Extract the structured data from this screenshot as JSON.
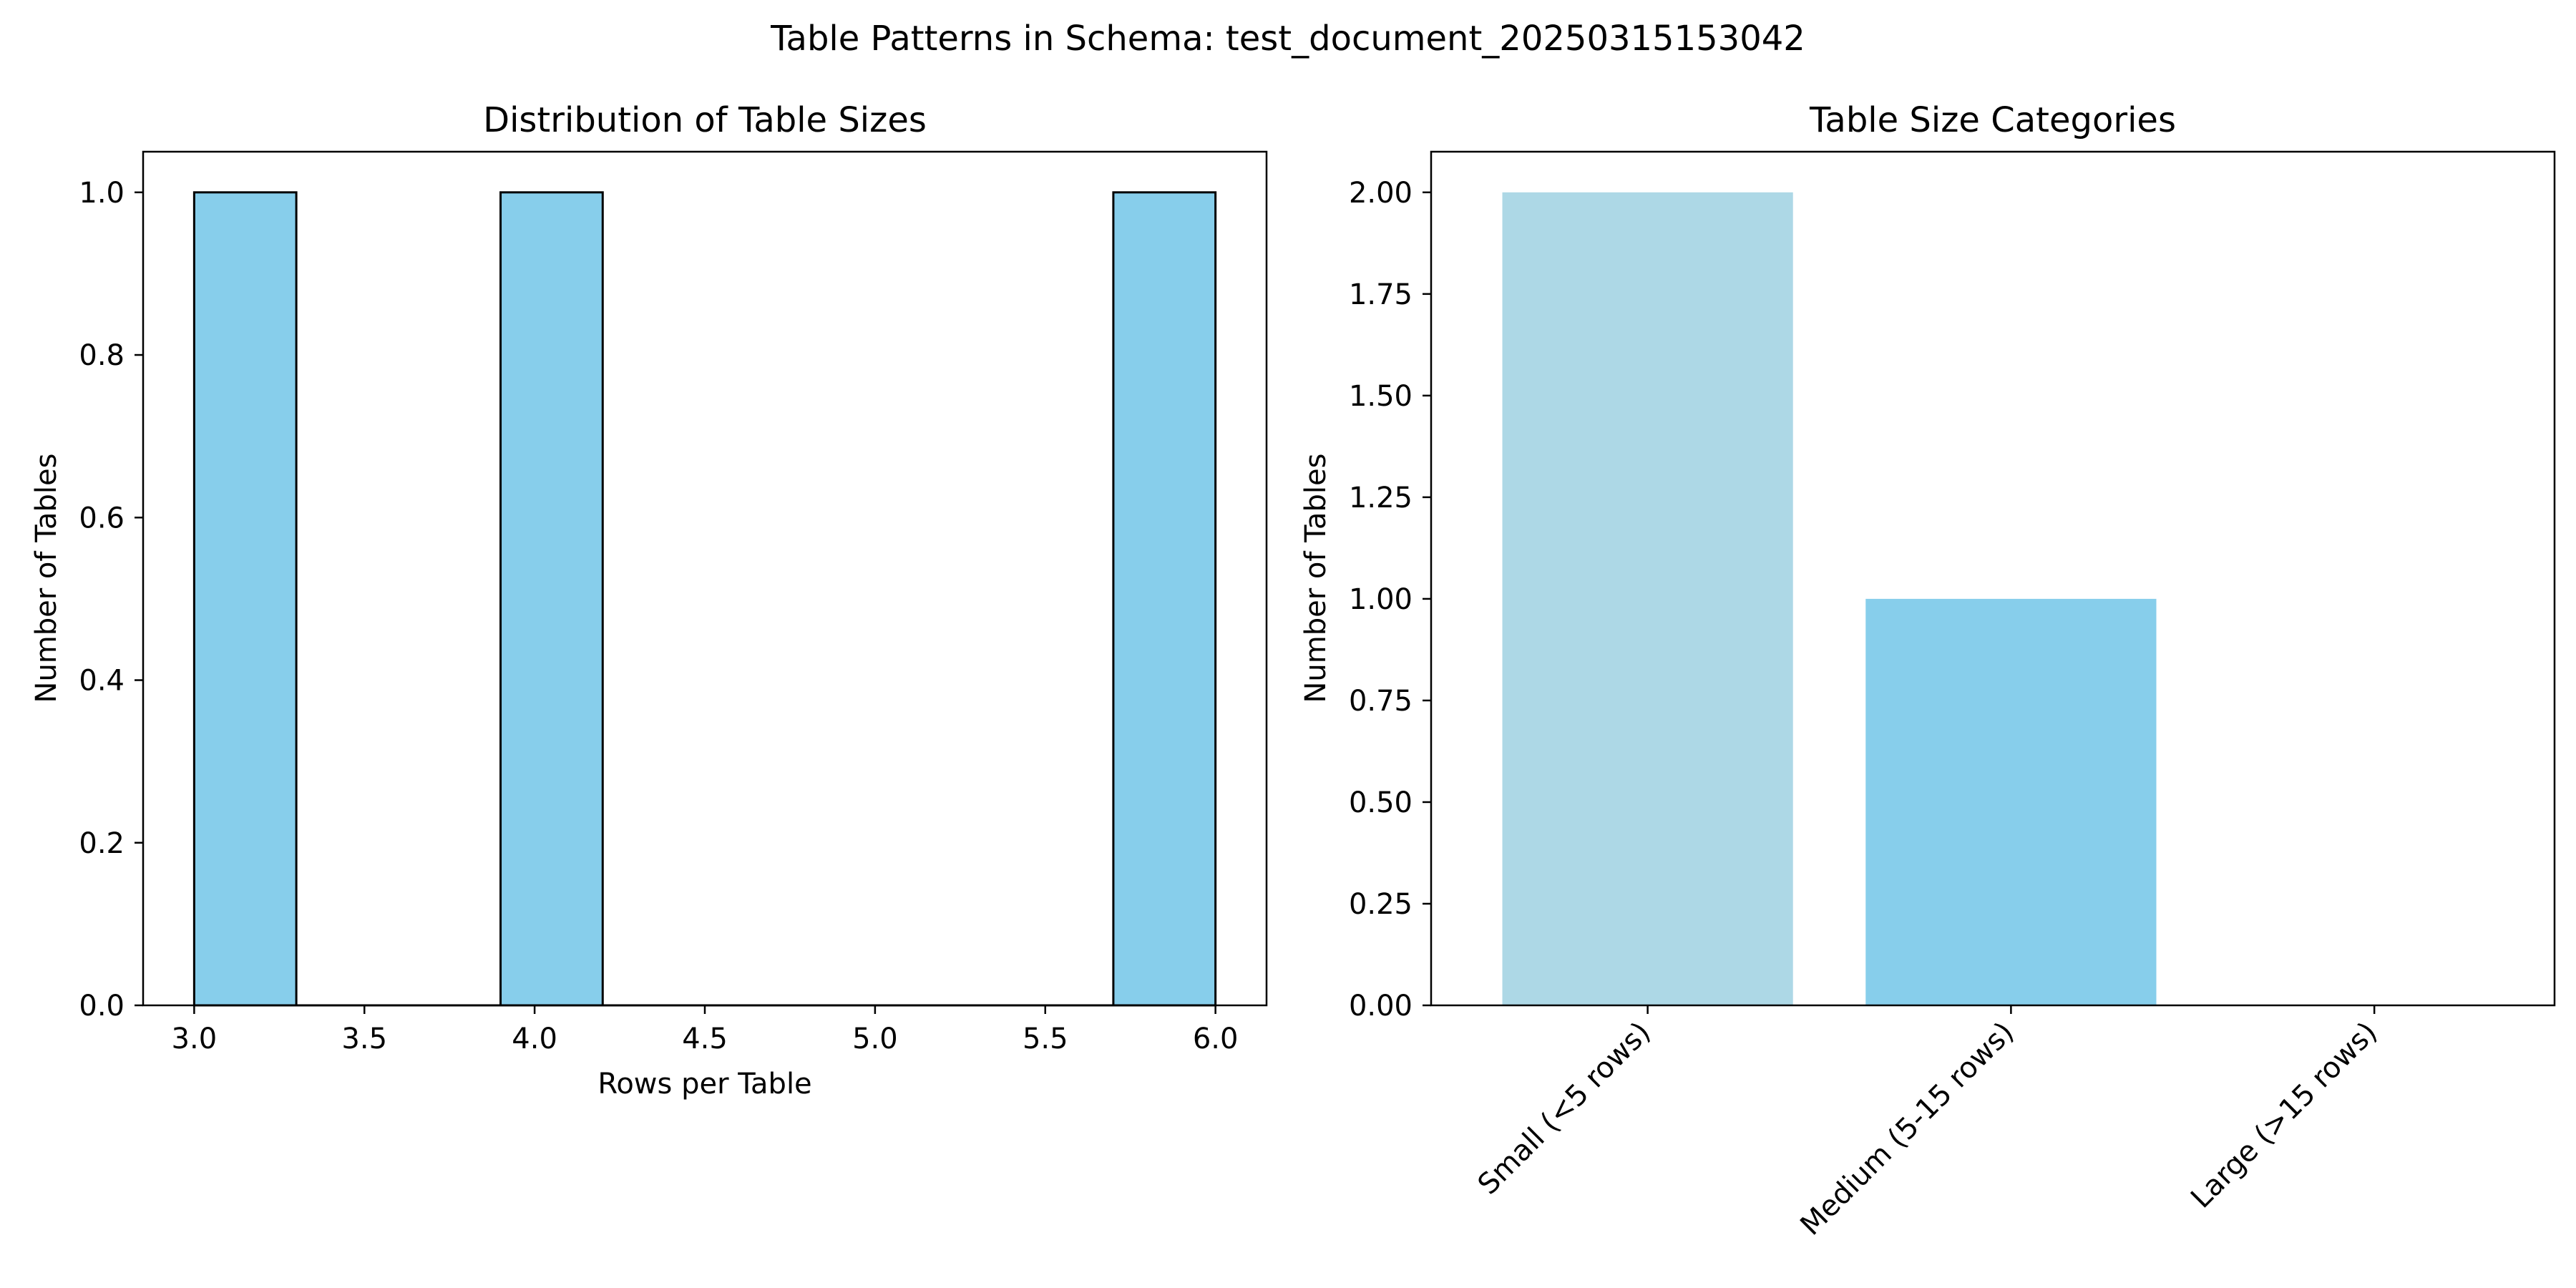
{
  "figure": {
    "suptitle": "Table Patterns in Schema: test_document_20250315153042"
  },
  "chart_data": [
    {
      "type": "bar",
      "subtype": "histogram",
      "title": "Distribution of Table Sizes",
      "xlabel": "Rows per Table",
      "ylabel": "Number of Tables",
      "xlim": [
        2.85,
        6.15
      ],
      "ylim": [
        0,
        1.05
      ],
      "xticks": [
        3.0,
        3.5,
        4.0,
        4.5,
        5.0,
        5.5,
        6.0
      ],
      "xtick_labels": [
        "3.0",
        "3.5",
        "4.0",
        "4.5",
        "5.0",
        "5.5",
        "6.0"
      ],
      "yticks": [
        0.0,
        0.2,
        0.4,
        0.6,
        0.8,
        1.0
      ],
      "ytick_labels": [
        "0.0",
        "0.2",
        "0.4",
        "0.6",
        "0.8",
        "1.0"
      ],
      "bins": [
        {
          "x0": 3.0,
          "x1": 3.3,
          "count": 1
        },
        {
          "x0": 3.3,
          "x1": 3.6,
          "count": 0
        },
        {
          "x0": 3.6,
          "x1": 3.9,
          "count": 0
        },
        {
          "x0": 3.9,
          "x1": 4.2,
          "count": 1
        },
        {
          "x0": 4.2,
          "x1": 4.5,
          "count": 0
        },
        {
          "x0": 4.5,
          "x1": 4.8,
          "count": 0
        },
        {
          "x0": 4.8,
          "x1": 5.1,
          "count": 0
        },
        {
          "x0": 5.1,
          "x1": 5.4,
          "count": 0
        },
        {
          "x0": 5.4,
          "x1": 5.7,
          "count": 0
        },
        {
          "x0": 5.7,
          "x1": 6.0,
          "count": 1
        }
      ],
      "bar_color": "#87ceeb",
      "edge_color": "#000000",
      "grid": false
    },
    {
      "type": "bar",
      "title": "Table Size Categories",
      "xlabel": "",
      "ylabel": "Number of Tables",
      "categories": [
        "Small (<5 rows)",
        "Medium (5-15 rows)",
        "Large (>15 rows)"
      ],
      "values": [
        2,
        1,
        0
      ],
      "colors": [
        "#add8e6",
        "#87ceeb",
        "#4682b4"
      ],
      "ylim": [
        0,
        2.1
      ],
      "yticks": [
        0.0,
        0.25,
        0.5,
        0.75,
        1.0,
        1.25,
        1.5,
        1.75,
        2.0
      ],
      "ytick_labels": [
        "0.00",
        "0.25",
        "0.50",
        "0.75",
        "1.00",
        "1.25",
        "1.50",
        "1.75",
        "2.00"
      ],
      "xtick_rotation": 45,
      "grid": false
    }
  ]
}
